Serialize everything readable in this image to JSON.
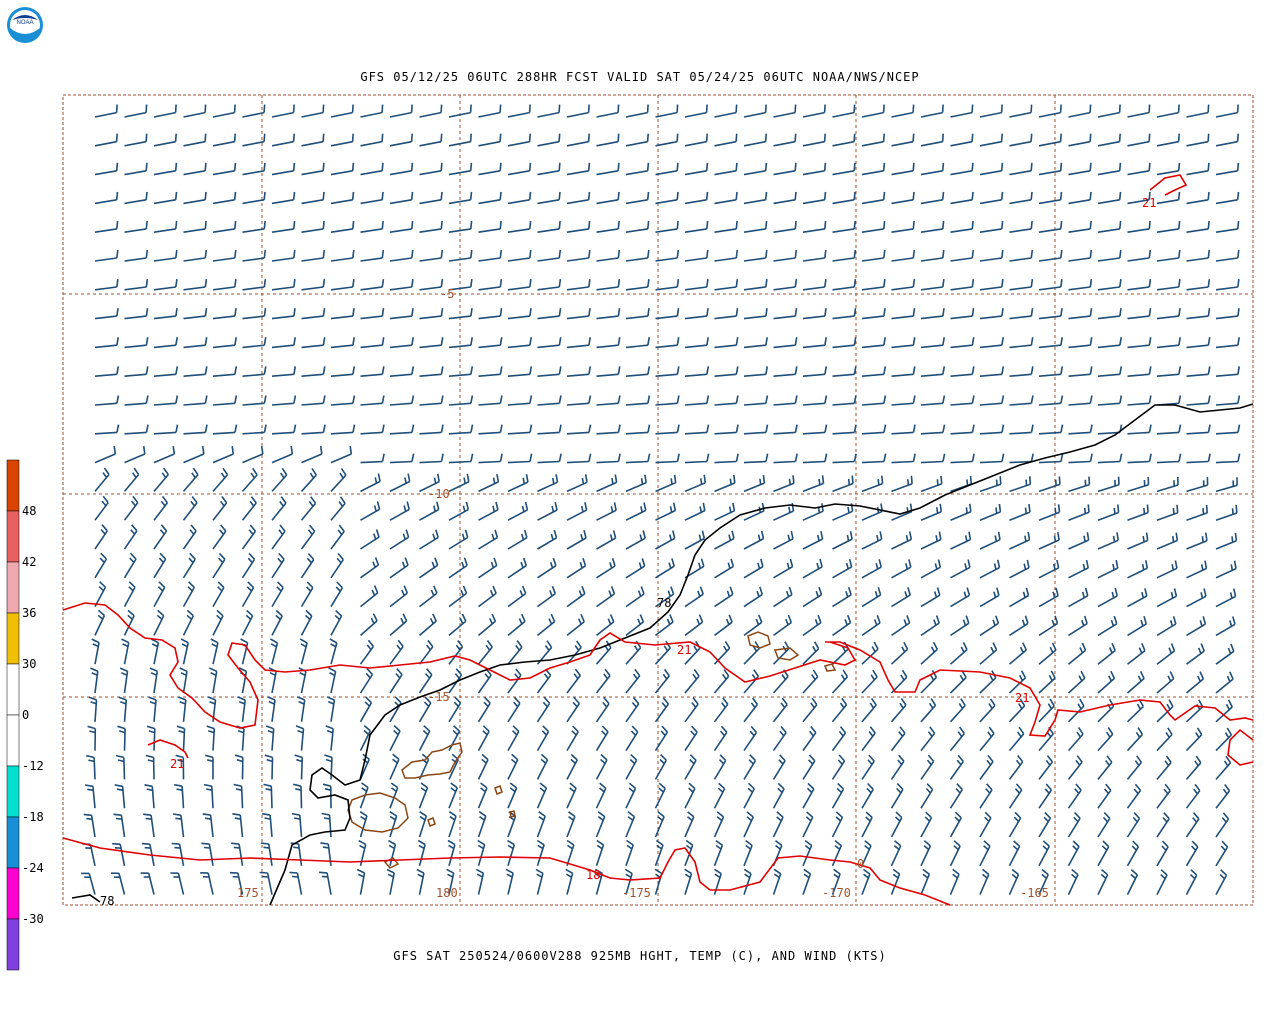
{
  "header": {
    "title": "GFS 05/12/25 06UTC 288HR FCST VALID SAT 05/24/25 06UTC NOAA/NWS/NCEP",
    "logo_text": "NOAA"
  },
  "footer": {
    "title": "GFS SAT 250524/0600V288 925MB HGHT, TEMP (C), AND WIND (KTS)"
  },
  "colorbar": {
    "labels": [
      "48",
      "42",
      "36",
      "30",
      "0",
      "-12",
      "-18",
      "-24",
      "-30"
    ],
    "colors": [
      "#d94400",
      "#e86060",
      "#f0a8b0",
      "#f0c000",
      "#ffffff",
      "#ffffff",
      "#00e0d0",
      "#1890d8",
      "#ff00d0",
      "#8040e0"
    ]
  },
  "map": {
    "latitude_labels": [
      "-5",
      "-10",
      "-15"
    ],
    "longitude_labels": [
      "175",
      "180",
      "-175",
      "-170",
      "-165"
    ],
    "height_contour_labels": [
      "78",
      "78"
    ],
    "temperature_contour_labels": [
      "21",
      "21",
      "21",
      "21",
      "18",
      "0"
    ],
    "colors": {
      "wind_barbs": "#1f4e79",
      "temperature_contours": "#e00000",
      "height_contours": "#000000",
      "grid_lines": "#a0522d",
      "coastlines": "#8b4513"
    }
  }
}
